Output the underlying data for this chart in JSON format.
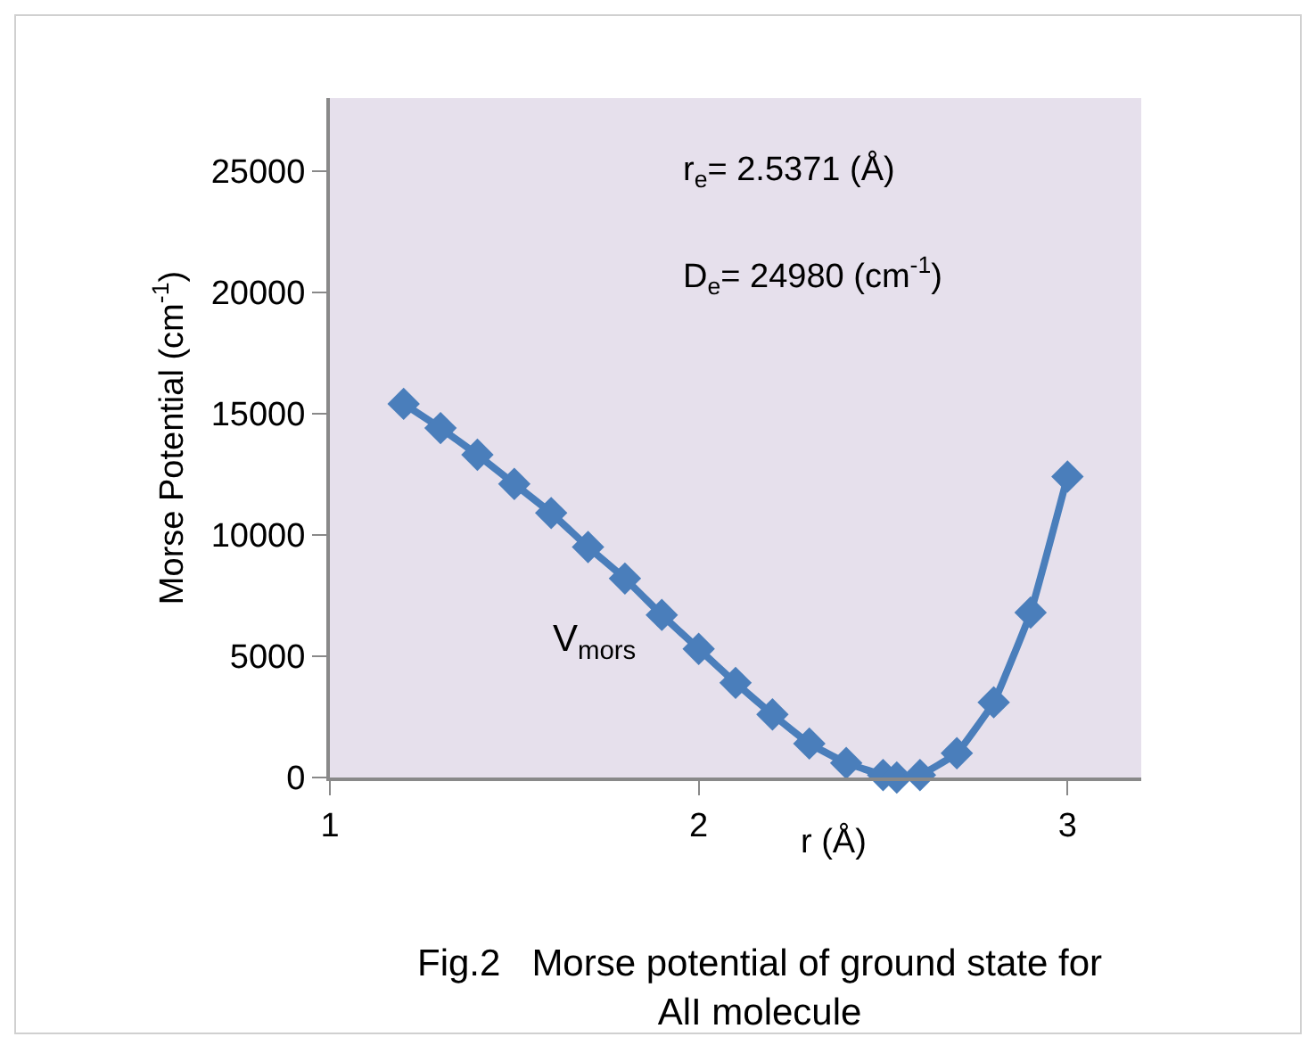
{
  "chart_data": {
    "type": "line",
    "xlabel": "r (Å)",
    "ylabel": "Morse Potential (cm$^{-1}$)",
    "x": [
      1.2,
      1.3,
      1.4,
      1.5,
      1.6,
      1.7,
      1.8,
      1.9,
      2.0,
      2.1,
      2.2,
      2.3,
      2.4,
      2.5,
      2.5371,
      2.6,
      2.7,
      2.8,
      2.9,
      3.0
    ],
    "series": [
      {
        "name": "V$_{mors}$",
        "color": "#4a7ebb",
        "values": [
          15400,
          14400,
          13300,
          12100,
          10900,
          9500,
          8200,
          6700,
          5300,
          3900,
          2600,
          1400,
          600,
          100,
          0,
          100,
          1000,
          3100,
          6800,
          12400
        ]
      }
    ],
    "xlim": [
      1,
      3.2
    ],
    "xticks": [
      1,
      2,
      3
    ],
    "ylim": [
      0,
      28000
    ],
    "yticks": [
      0,
      5000,
      10000,
      15000,
      20000,
      25000
    ],
    "grid": false,
    "legend": false,
    "marker": "diamond",
    "line_style": "solid",
    "annotations": [
      "r$_{e}$= 2.5371 (Å)",
      "D$_{e}$= 24980 (cm$^{-1}$)",
      "Fig.2   Morse potential of ground state for\nAlI molecule"
    ]
  }
}
